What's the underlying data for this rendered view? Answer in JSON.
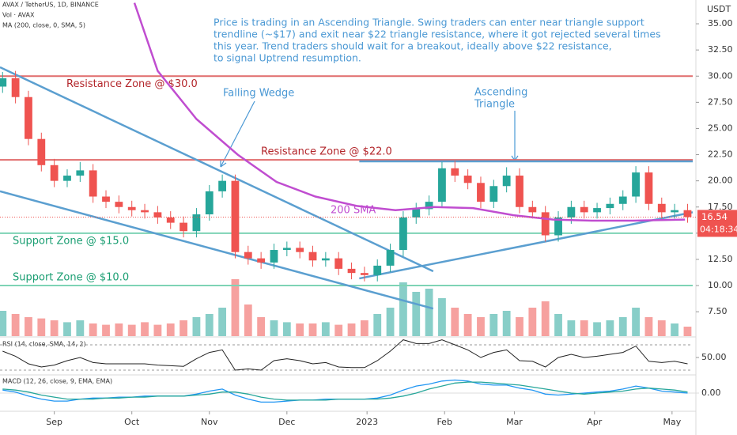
{
  "chart_data": {
    "type": "candlestick",
    "symbol": "AVAX / TetherUS, 1D, BINANCE",
    "volume_label": "Vol · AVAX",
    "ma_label": "MA (200, close, 0, SMA, 5)",
    "currency": "USDT",
    "note": [
      "Price is trading in an Ascending Triangle. Swing traders can enter near triangle support",
      "trendline (~$17) and exit near $22 triangle resistance,  where it got rejected several times",
      "this year. Trend traders should wait for a breakout, ideally above $22 resistance,",
      "to signal Uptrend resumption."
    ],
    "up_color": "#26a69a",
    "down_color": "#ef5350",
    "xlim": [
      0,
      268
    ],
    "xticks": [
      {
        "value": 21,
        "label": "Sep"
      },
      {
        "value": 51,
        "label": "Oct"
      },
      {
        "value": 81,
        "label": "Nov"
      },
      {
        "value": 111,
        "label": "Dec"
      },
      {
        "value": 142,
        "label": "2023"
      },
      {
        "value": 172,
        "label": "Feb"
      },
      {
        "value": 199,
        "label": "Mar"
      },
      {
        "value": 230,
        "label": "Apr"
      },
      {
        "value": 260,
        "label": "May"
      }
    ],
    "ylim": [
      5.17,
      37.27
    ],
    "yticks": [
      {
        "value": 7.5,
        "label": "7.50"
      },
      {
        "value": 10,
        "label": "10.00"
      },
      {
        "value": 12.5,
        "label": "12.50"
      },
      {
        "value": 15,
        "label": "15.00"
      },
      {
        "value": 17.5,
        "label": "17.50"
      },
      {
        "value": 20,
        "label": "20.00"
      },
      {
        "value": 22.5,
        "label": "22.50"
      },
      {
        "value": 25,
        "label": "25.00"
      },
      {
        "value": 27.5,
        "label": "27.50"
      },
      {
        "value": 30,
        "label": "30.00"
      },
      {
        "value": 32.5,
        "label": "32.50"
      },
      {
        "value": 35,
        "label": "35.00"
      }
    ],
    "x": [
      1,
      6,
      11,
      16,
      21,
      26,
      31,
      36,
      41,
      46,
      51,
      56,
      61,
      66,
      71,
      76,
      81,
      86,
      91,
      96,
      101,
      106,
      111,
      116,
      121,
      126,
      131,
      136,
      141,
      146,
      151,
      156,
      161,
      166,
      171,
      176,
      181,
      186,
      191,
      196,
      201,
      206,
      211,
      216,
      221,
      226,
      231,
      236,
      241,
      246,
      251,
      256,
      261,
      266
    ],
    "open": [
      29.0,
      29.8,
      28,
      24,
      21.5,
      20,
      20.5,
      21,
      18.5,
      18,
      17.5,
      17.2,
      17,
      16.5,
      16,
      15.2,
      16.8,
      19,
      20,
      13.2,
      12.6,
      12.2,
      13.4,
      13.6,
      13.2,
      12.4,
      12.6,
      11.6,
      11.2,
      11.0,
      11.9,
      13.4,
      16.5,
      17.3,
      18.0,
      21.2,
      20.5,
      19.8,
      18.0,
      19.5,
      20.5,
      17.5,
      17.0,
      14.8,
      16.5,
      17.5,
      17.0,
      17.4,
      17.8,
      18.5,
      20.8,
      17.8,
      17.0,
      17.2
    ],
    "high": [
      30.4,
      30.5,
      28.6,
      24.6,
      22.1,
      21.1,
      21.8,
      21.6,
      19.1,
      18.6,
      18.1,
      17.8,
      17.6,
      17.1,
      16.6,
      17.4,
      19.6,
      20.6,
      20.6,
      13.8,
      13.2,
      14.0,
      14.2,
      14.2,
      13.8,
      13.2,
      13.2,
      12.2,
      11.8,
      12.5,
      14.0,
      17.1,
      17.9,
      18.6,
      21.8,
      21.9,
      21.1,
      20.4,
      20.1,
      21.3,
      21.2,
      18.1,
      17.6,
      17.1,
      18.1,
      18.1,
      17.9,
      18.4,
      19.1,
      21.4,
      21.4,
      18.4,
      17.8,
      17.8
    ],
    "low": [
      28.4,
      27.4,
      23.4,
      20.9,
      19.4,
      19.4,
      19.9,
      17.9,
      17.4,
      16.9,
      16.6,
      16.4,
      15.9,
      15.4,
      14.6,
      14.6,
      16.2,
      18.4,
      12.6,
      12.0,
      11.6,
      11.6,
      12.8,
      12.6,
      11.8,
      11.8,
      11.0,
      10.6,
      10.4,
      10.4,
      11.3,
      12.8,
      15.9,
      16.7,
      17.4,
      19.9,
      19.2,
      17.4,
      17.4,
      18.9,
      16.9,
      16.4,
      14.2,
      14.2,
      15.9,
      16.4,
      16.4,
      16.8,
      17.2,
      17.9,
      17.2,
      16.4,
      16.4,
      16.0
    ],
    "close": [
      29.8,
      28,
      24,
      21.5,
      20,
      20.5,
      21,
      18.5,
      18,
      17.5,
      17.2,
      17,
      16.5,
      16,
      15.2,
      16.8,
      19,
      20,
      13.2,
      12.6,
      12.2,
      13.4,
      13.6,
      13.2,
      12.4,
      12.6,
      11.6,
      11.2,
      11.0,
      11.9,
      13.4,
      16.5,
      17.3,
      18.0,
      21.2,
      20.5,
      19.8,
      18.0,
      19.5,
      20.5,
      17.5,
      17.0,
      14.8,
      16.5,
      17.5,
      17.0,
      17.4,
      17.8,
      18.5,
      20.8,
      17.8,
      17.0,
      17.2,
      16.54
    ],
    "volume": {
      "ylim": [
        0,
        100
      ],
      "values": [
        40,
        35,
        30,
        28,
        25,
        22,
        25,
        20,
        18,
        20,
        18,
        22,
        18,
        20,
        25,
        30,
        35,
        45,
        90,
        50,
        30,
        25,
        22,
        20,
        20,
        22,
        18,
        20,
        25,
        35,
        45,
        85,
        70,
        75,
        60,
        45,
        35,
        30,
        35,
        40,
        30,
        45,
        55,
        35,
        25,
        25,
        22,
        25,
        30,
        45,
        30,
        25,
        20,
        15
      ]
    },
    "sma": {
      "label": "200 SMA",
      "color": "#c04dd0",
      "x": [
        52,
        61,
        76,
        92,
        107,
        122,
        138,
        153,
        168,
        183,
        199,
        214,
        229,
        245,
        265
      ],
      "values": [
        37.0,
        30.5,
        25.9,
        22.5,
        19.9,
        18.5,
        17.6,
        17.2,
        17.5,
        17.4,
        16.7,
        16.3,
        16.2,
        16.2,
        16.3
      ]
    },
    "zones": [
      {
        "label": "Resistance Zone @ $30.0",
        "value": 30,
        "color": "#e06c6c",
        "text_color": "#b3262b"
      },
      {
        "label": "Resistance Zone @ $22.0",
        "value": 22,
        "color": "#e06c6c",
        "text_color": "#b3262b"
      },
      {
        "label": "Support Zone @ $15.0",
        "value": 15,
        "color": "#7ed3b5",
        "text_color": "#1a9e72"
      },
      {
        "label": "Support Zone @ $10.0",
        "value": 10,
        "color": "#7ed3b5",
        "text_color": "#1a9e72"
      }
    ],
    "trendlines": [
      {
        "x": [
          0,
          167.6
        ],
        "values": [
          30.85,
          11.36
        ]
      },
      {
        "x": [
          0,
          167.6
        ],
        "values": [
          19.0,
          7.8
        ]
      },
      {
        "x": [
          139,
          268
        ],
        "values": [
          10.68,
          17.0
        ]
      },
      {
        "x": [
          139,
          268
        ],
        "values": [
          21.86,
          21.86
        ]
      }
    ],
    "trend_color": "#5b9fd0",
    "annotation_color": "#4a98d4",
    "patterns": [
      {
        "lines": [
          "Falling Wedge"
        ]
      },
      {
        "lines": [
          "Ascending",
          "Triangle"
        ]
      }
    ],
    "last_price": {
      "value": 16.54,
      "countdown": "04:18:34"
    },
    "rsi": {
      "label": "RSI (14, close, SMA, 14, 2)",
      "ylim": [
        20,
        80
      ],
      "yticks": [
        {
          "value": 50,
          "label": "50.00"
        }
      ],
      "bands": [
        70,
        30
      ],
      "values": [
        60,
        52,
        40,
        35,
        38,
        45,
        50,
        42,
        40,
        40,
        40,
        40,
        38,
        37,
        36,
        48,
        58,
        62,
        30,
        32,
        30,
        45,
        48,
        45,
        40,
        42,
        35,
        34,
        34,
        45,
        60,
        78,
        72,
        72,
        78,
        70,
        62,
        50,
        58,
        62,
        45,
        44,
        35,
        50,
        55,
        50,
        52,
        55,
        58,
        68,
        44,
        42,
        44,
        40
      ]
    },
    "macd": {
      "label": "MACD (12, 26, close, 9, EMA, EMA)",
      "ylim": [
        -1.5,
        1.5
      ],
      "yticks": [
        {
          "value": 0,
          "label": "0.00"
        }
      ],
      "macd_color": "#2196f3",
      "signal_color": "#26a69a",
      "macd": [
        0.3,
        0.1,
        -0.3,
        -0.6,
        -0.8,
        -0.8,
        -0.6,
        -0.5,
        -0.5,
        -0.4,
        -0.4,
        -0.3,
        -0.3,
        -0.3,
        -0.3,
        -0.1,
        0.2,
        0.4,
        -0.2,
        -0.6,
        -0.9,
        -0.9,
        -0.8,
        -0.7,
        -0.7,
        -0.6,
        -0.6,
        -0.6,
        -0.6,
        -0.5,
        -0.2,
        0.3,
        0.7,
        0.9,
        1.2,
        1.3,
        1.2,
        0.9,
        0.8,
        0.8,
        0.5,
        0.3,
        -0.1,
        -0.2,
        -0.1,
        0.0,
        0.1,
        0.2,
        0.4,
        0.7,
        0.5,
        0.2,
        0.1,
        0.0
      ],
      "signal": [
        0.4,
        0.3,
        0.1,
        -0.2,
        -0.4,
        -0.6,
        -0.6,
        -0.6,
        -0.5,
        -0.5,
        -0.4,
        -0.4,
        -0.3,
        -0.3,
        -0.3,
        -0.2,
        -0.1,
        0.1,
        0.1,
        -0.1,
        -0.4,
        -0.6,
        -0.7,
        -0.7,
        -0.7,
        -0.7,
        -0.6,
        -0.6,
        -0.6,
        -0.6,
        -0.5,
        -0.3,
        0.0,
        0.4,
        0.7,
        1.0,
        1.1,
        1.1,
        1.0,
        0.9,
        0.8,
        0.6,
        0.4,
        0.2,
        0.0,
        -0.1,
        0.0,
        0.1,
        0.2,
        0.4,
        0.5,
        0.4,
        0.3,
        0.1
      ]
    }
  }
}
